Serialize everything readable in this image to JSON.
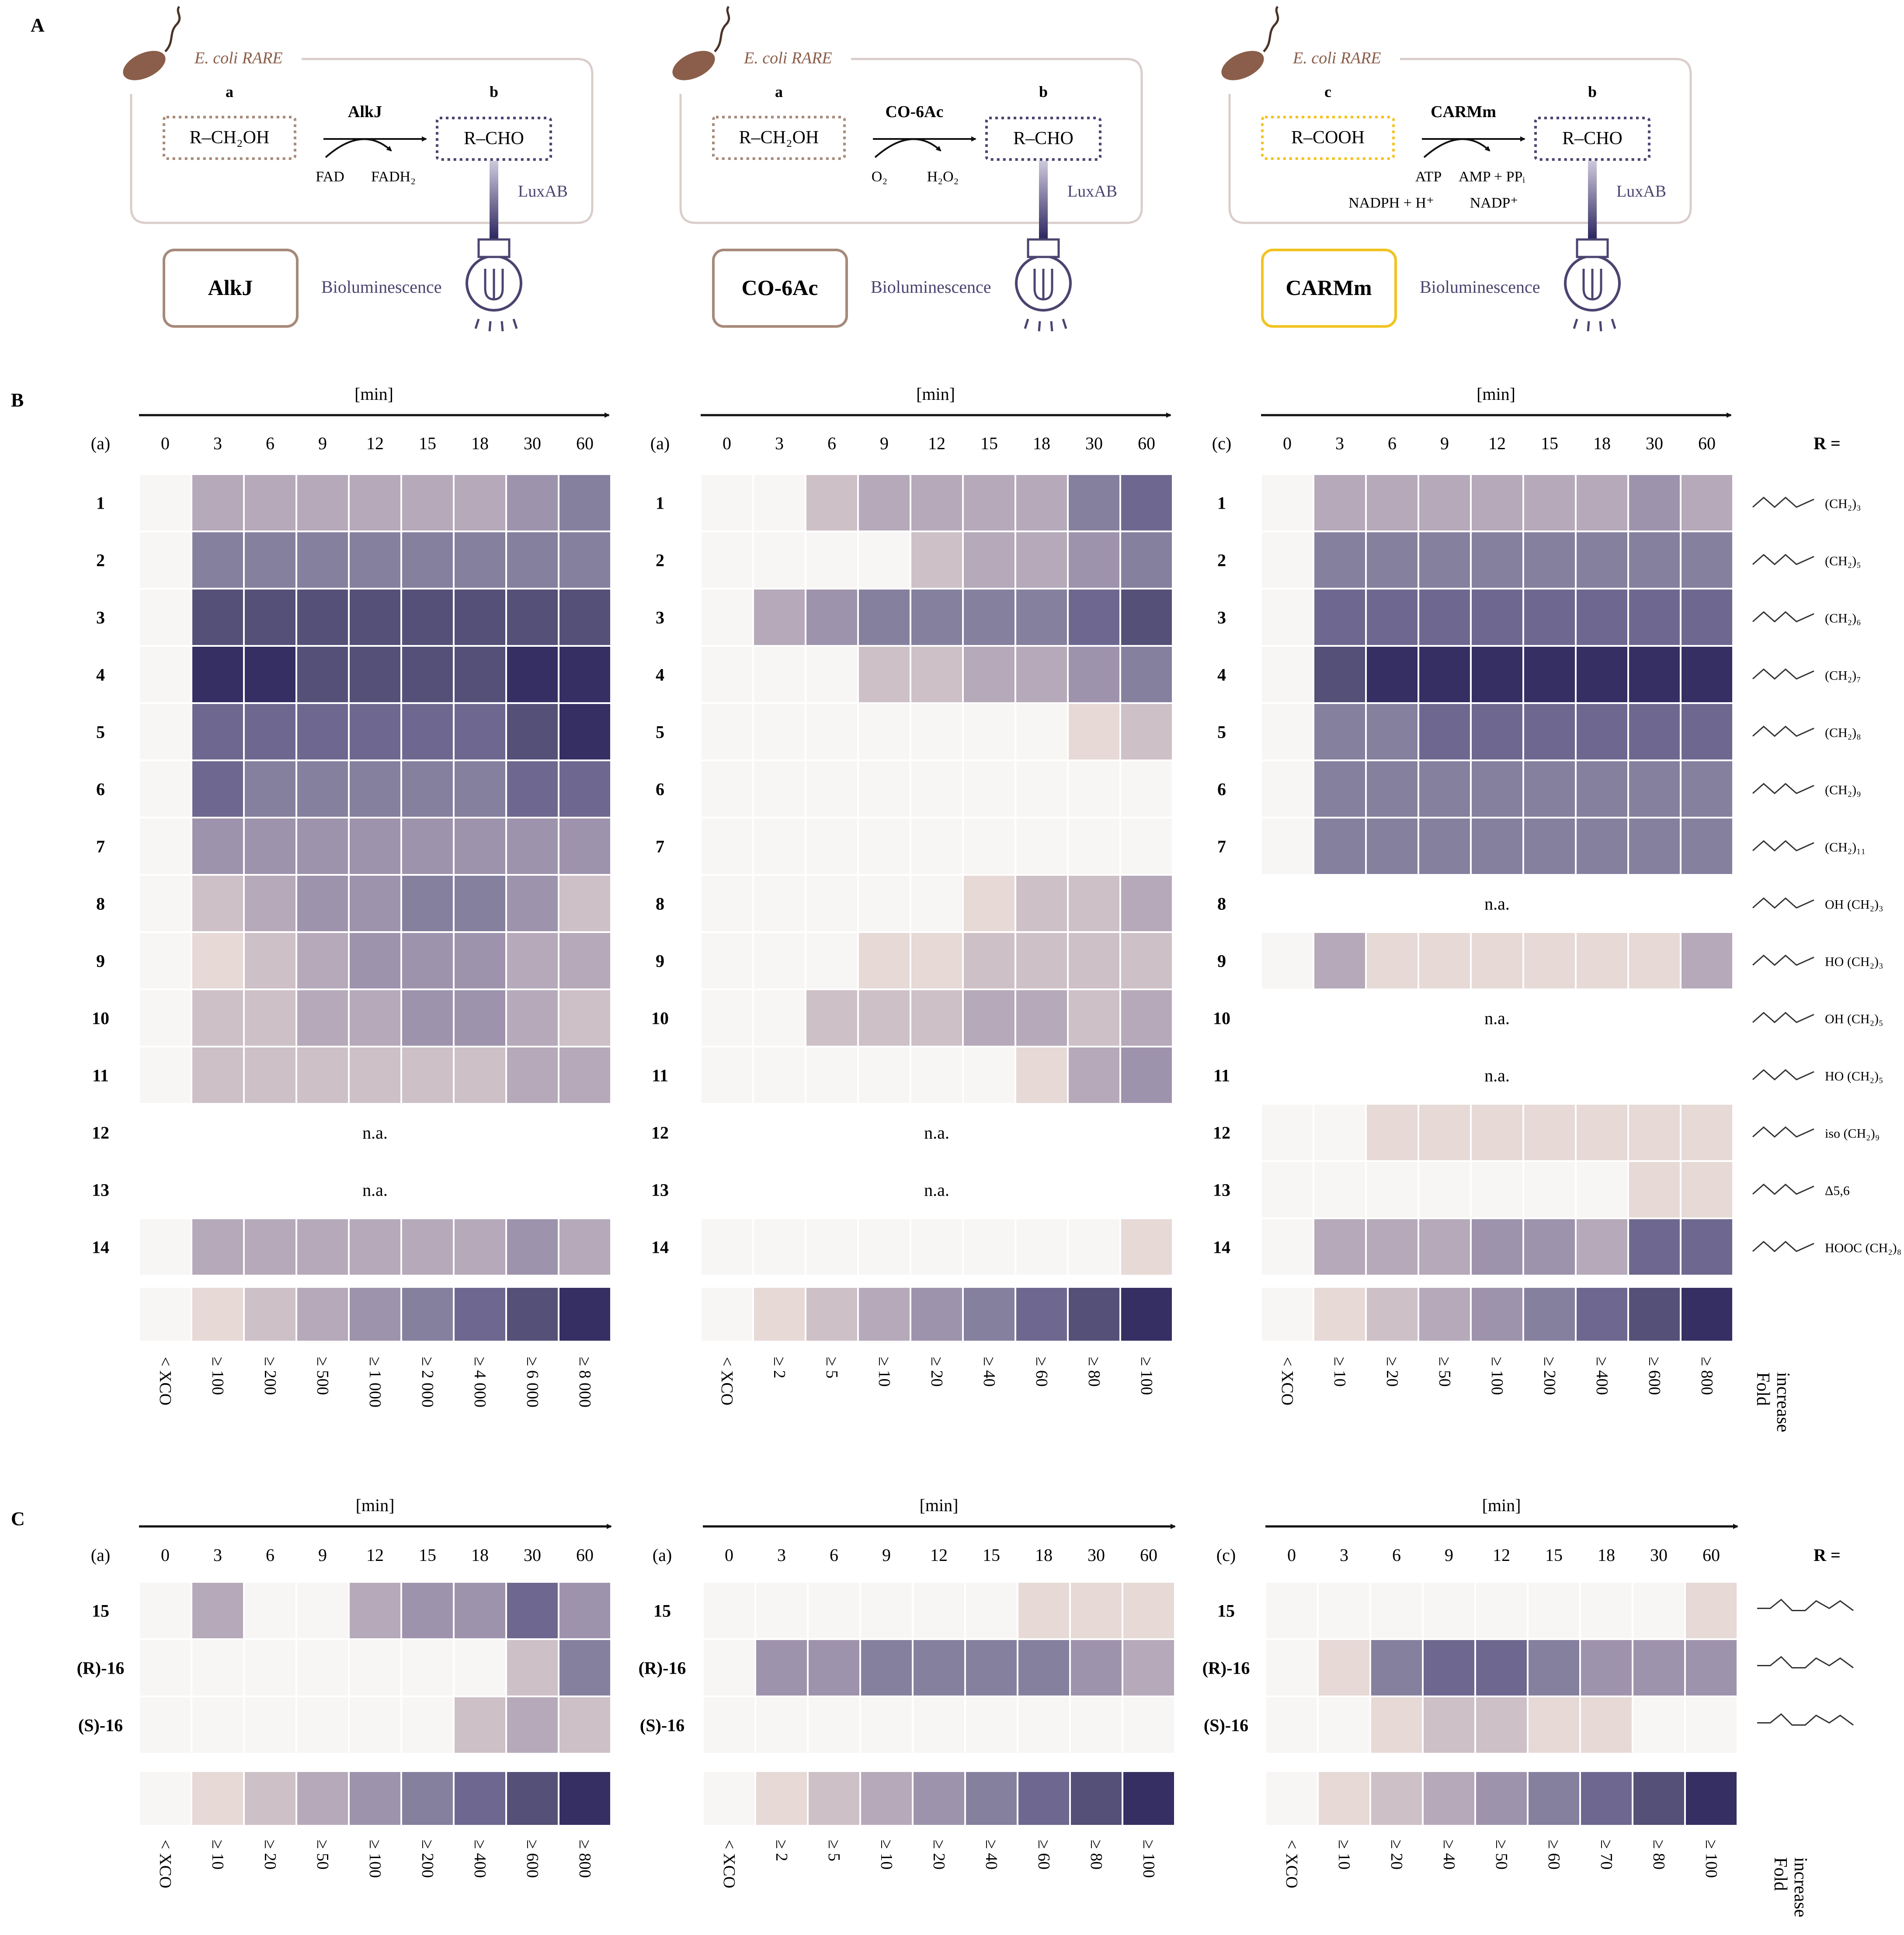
{
  "panel_labels": {
    "A": "A",
    "B": "B",
    "C": "C"
  },
  "panel_a": {
    "host": "E. coli RARE",
    "schemes": [
      {
        "sub_id": "a",
        "substrate": "R–CH₂OH",
        "prod_id": "b",
        "product": "R–CHO",
        "enzyme": "AlkJ",
        "cofactors_left": "FAD",
        "cofactors_right": "FADH₂",
        "cofactors2_left": "",
        "cofactors2_right": "",
        "sensor": "LuxAB",
        "box_label": "AlkJ",
        "readout": "Bioluminescence",
        "color": "#a78a7a"
      },
      {
        "sub_id": "a",
        "substrate": "R–CH₂OH",
        "prod_id": "b",
        "product": "R–CHO",
        "enzyme": "CO-6Ac",
        "cofactors_left": "O₂",
        "cofactors_right": "H₂O₂",
        "cofactors2_left": "",
        "cofactors2_right": "",
        "sensor": "LuxAB",
        "box_label": "CO-6Ac",
        "readout": "Bioluminescence",
        "color": "#a78a7a"
      },
      {
        "sub_id": "c",
        "substrate": "R–COOH",
        "prod_id": "b",
        "product": "R–CHO",
        "enzyme": "CARMm",
        "cofactors_left": "ATP",
        "cofactors_right": "AMP + PPᵢ",
        "cofactors2_left": "NADPH + H⁺",
        "cofactors2_right": "NADP⁺",
        "sensor": "LuxAB",
        "box_label": "CARMm",
        "readout": "Bioluminescence",
        "color": "#f2c320"
      }
    ]
  },
  "axis_time_label": "[min]",
  "time_points": [
    "0",
    "3",
    "6",
    "9",
    "12",
    "15",
    "18",
    "30",
    "60"
  ],
  "r_header": "R =",
  "na_label": "n.a.",
  "fold_label": [
    "Fold",
    "increase"
  ],
  "panel_b": {
    "row_labels": [
      "1",
      "2",
      "3",
      "4",
      "5",
      "6",
      "7",
      "8",
      "9",
      "10",
      "11",
      "12",
      "13",
      "14"
    ],
    "r_groups": [
      "(CH₂)₃",
      "(CH₂)₅",
      "(CH₂)₆",
      "(CH₂)₇",
      "(CH₂)₈",
      "(CH₂)₉",
      "(CH₂)₁₁",
      "OH (CH₂)₃",
      "HO (CH₂)₃",
      "OH (CH₂)₅",
      "HO (CH₂)₅",
      "iso (CH₂)₉",
      "Δ5,6",
      "HOOC (CH₂)₈"
    ],
    "heatmaps": [
      {
        "substrate_id": "(a)",
        "levels": [
          [
            0,
            3,
            3,
            3,
            3,
            3,
            3,
            4,
            5
          ],
          [
            0,
            5,
            5,
            5,
            5,
            5,
            5,
            5,
            5
          ],
          [
            0,
            7,
            7,
            7,
            7,
            7,
            7,
            7,
            7
          ],
          [
            0,
            8,
            8,
            7,
            7,
            7,
            7,
            8,
            8
          ],
          [
            0,
            6,
            6,
            6,
            6,
            6,
            6,
            7,
            8
          ],
          [
            0,
            6,
            5,
            5,
            5,
            5,
            5,
            6,
            6
          ],
          [
            0,
            4,
            4,
            4,
            4,
            4,
            4,
            4,
            4
          ],
          [
            0,
            2,
            3,
            4,
            4,
            5,
            5,
            4,
            2
          ],
          [
            0,
            1,
            2,
            3,
            4,
            4,
            4,
            3,
            3
          ],
          [
            0,
            2,
            2,
            3,
            3,
            4,
            4,
            3,
            2
          ],
          [
            0,
            2,
            2,
            2,
            2,
            2,
            2,
            3,
            3
          ],
          null,
          null,
          [
            0,
            3,
            3,
            3,
            3,
            3,
            3,
            4,
            3
          ]
        ],
        "legend_ticks": [
          "< XCO",
          "≥ 100",
          "≥ 200",
          "≥ 500",
          "≥ 1 000",
          "≥ 2 000",
          "≥ 4 000",
          "≥ 6 000",
          "≥ 8 000"
        ]
      },
      {
        "substrate_id": "(a)",
        "levels": [
          [
            0,
            0,
            2,
            3,
            3,
            3,
            3,
            5,
            6
          ],
          [
            0,
            0,
            0,
            0,
            2,
            3,
            3,
            4,
            5
          ],
          [
            0,
            3,
            4,
            5,
            5,
            5,
            5,
            6,
            7
          ],
          [
            0,
            0,
            0,
            2,
            2,
            3,
            3,
            4,
            5
          ],
          [
            0,
            0,
            0,
            0,
            0,
            0,
            0,
            1,
            2
          ],
          [
            0,
            0,
            0,
            0,
            0,
            0,
            0,
            0,
            0
          ],
          [
            0,
            0,
            0,
            0,
            0,
            0,
            0,
            0,
            0
          ],
          [
            0,
            0,
            0,
            0,
            0,
            1,
            2,
            2,
            3
          ],
          [
            0,
            0,
            0,
            1,
            1,
            2,
            2,
            2,
            2
          ],
          [
            0,
            0,
            2,
            2,
            2,
            3,
            3,
            2,
            3
          ],
          [
            0,
            0,
            0,
            0,
            0,
            0,
            1,
            3,
            4
          ],
          null,
          null,
          [
            0,
            0,
            0,
            0,
            0,
            0,
            0,
            0,
            1
          ]
        ],
        "legend_ticks": [
          "< XCO",
          "≥ 2",
          "≥ 5",
          "≥ 10",
          "≥ 20",
          "≥ 40",
          "≥ 60",
          "≥ 80",
          "≥ 100"
        ]
      },
      {
        "substrate_id": "(c)",
        "levels": [
          [
            0,
            3,
            3,
            3,
            3,
            3,
            3,
            4,
            3
          ],
          [
            0,
            5,
            5,
            5,
            5,
            5,
            5,
            5,
            5
          ],
          [
            0,
            6,
            6,
            6,
            6,
            6,
            6,
            6,
            6
          ],
          [
            0,
            7,
            8,
            8,
            8,
            8,
            8,
            8,
            8
          ],
          [
            0,
            5,
            5,
            6,
            6,
            6,
            6,
            6,
            6
          ],
          [
            0,
            5,
            5,
            5,
            5,
            5,
            5,
            5,
            5
          ],
          [
            0,
            5,
            5,
            5,
            5,
            5,
            5,
            5,
            5
          ],
          null,
          [
            0,
            3,
            1,
            1,
            1,
            1,
            1,
            1,
            3
          ],
          null,
          null,
          [
            0,
            0,
            1,
            1,
            1,
            1,
            1,
            1,
            1
          ],
          [
            0,
            0,
            0,
            0,
            0,
            0,
            0,
            1,
            1
          ],
          [
            0,
            3,
            3,
            3,
            4,
            4,
            3,
            6,
            6
          ]
        ],
        "legend_ticks": [
          "< XCO",
          "≥ 10",
          "≥ 20",
          "≥ 50",
          "≥ 100",
          "≥ 200",
          "≥ 400",
          "≥ 600",
          "≥ 800"
        ]
      }
    ]
  },
  "panel_c": {
    "row_labels": [
      "15",
      "(R)-16",
      "(S)-16"
    ],
    "heatmaps": [
      {
        "substrate_id": "(a)",
        "levels": [
          [
            0,
            3,
            0,
            0,
            3,
            4,
            4,
            6,
            4
          ],
          [
            0,
            0,
            0,
            0,
            0,
            0,
            0,
            2,
            5
          ],
          [
            0,
            0,
            0,
            0,
            0,
            0,
            2,
            3,
            2
          ]
        ],
        "legend_ticks": [
          "< XCO",
          "≥ 10",
          "≥ 20",
          "≥ 50",
          "≥ 100",
          "≥ 200",
          "≥ 400",
          "≥ 600",
          "≥ 800"
        ]
      },
      {
        "substrate_id": "(a)",
        "levels": [
          [
            0,
            0,
            0,
            0,
            0,
            0,
            1,
            1,
            1
          ],
          [
            0,
            4,
            4,
            5,
            5,
            5,
            5,
            4,
            3
          ],
          [
            0,
            0,
            0,
            0,
            0,
            0,
            0,
            0,
            0
          ]
        ],
        "legend_ticks": [
          "< XCO",
          "≥ 2",
          "≥ 5",
          "≥ 10",
          "≥ 20",
          "≥ 40",
          "≥ 60",
          "≥ 80",
          "≥ 100"
        ]
      },
      {
        "substrate_id": "(c)",
        "levels": [
          [
            0,
            0,
            0,
            0,
            0,
            0,
            0,
            0,
            1
          ],
          [
            0,
            1,
            5,
            6,
            6,
            5,
            4,
            4,
            4
          ],
          [
            0,
            0,
            1,
            2,
            2,
            1,
            1,
            0,
            0
          ]
        ],
        "legend_ticks": [
          "< XCO",
          "≥ 10",
          "≥ 20",
          "≥ 40",
          "≥ 50",
          "≥ 60",
          "≥ 70",
          "≥ 80",
          "≥ 100"
        ]
      }
    ]
  },
  "scale_colors": [
    "#f8f6f5",
    "#e6d9d6",
    "#cdc0c6",
    "#b5a9ba",
    "#9e93ad",
    "#86809f",
    "#6e6890",
    "#545078",
    "#352f63"
  ]
}
